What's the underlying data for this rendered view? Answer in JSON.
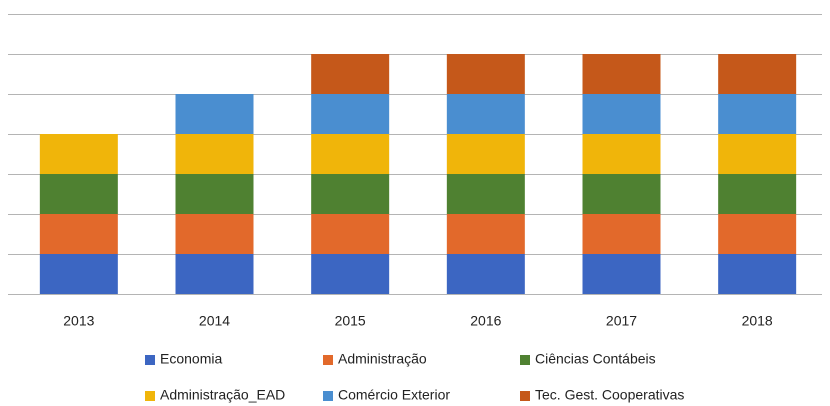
{
  "chart_data": {
    "type": "bar",
    "stacked": true,
    "categories": [
      "2013",
      "2014",
      "2015",
      "2016",
      "2017",
      "2018"
    ],
    "series": [
      {
        "name": "Economia",
        "color": "#3c66c2",
        "values": [
          1,
          1,
          1,
          1,
          1,
          1
        ]
      },
      {
        "name": "Administração",
        "color": "#e2692b",
        "values": [
          1,
          1,
          1,
          1,
          1,
          1
        ]
      },
      {
        "name": "Ciências Contábeis",
        "color": "#4f8131",
        "values": [
          1,
          1,
          1,
          1,
          1,
          1
        ]
      },
      {
        "name": "Administração_EAD",
        "color": "#f0b50a",
        "values": [
          1,
          1,
          1,
          1,
          1,
          1
        ]
      },
      {
        "name": "Comércio Exterior",
        "color": "#4a8ed0",
        "values": [
          0,
          1,
          1,
          1,
          1,
          1
        ]
      },
      {
        "name": "Tec. Gest. Cooperativas",
        "color": "#c5581a",
        "values": [
          0,
          0,
          1,
          1,
          1,
          1
        ]
      }
    ],
    "ylim": [
      0,
      7
    ],
    "yticks": [
      0,
      1,
      2,
      3,
      4,
      5,
      6,
      7
    ],
    "grid": true
  }
}
